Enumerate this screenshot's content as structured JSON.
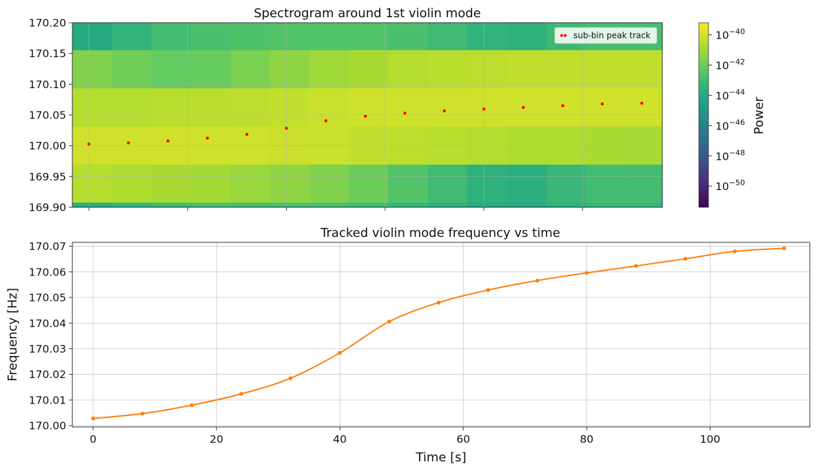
{
  "chart_data": [
    {
      "type": "heatmap",
      "title": "Spectrogram around 1st violin mode",
      "xlabel": "",
      "ylabel": "",
      "xlim": [
        -3.36,
        116.16
      ],
      "ylim": [
        169.9,
        170.2
      ],
      "yticks": [
        "169.90",
        "169.95",
        "170.00",
        "170.05",
        "170.10",
        "170.15",
        "170.20"
      ],
      "ytick_values": [
        169.9,
        169.95,
        170.0,
        170.05,
        170.1,
        170.15,
        170.2
      ],
      "xtick_values": [
        0,
        20,
        40,
        60,
        80,
        100
      ],
      "grid": true,
      "x_edges": [
        -3.36,
        4.64,
        12.64,
        20.64,
        28.64,
        36.64,
        44.64,
        52.64,
        60.64,
        68.64,
        76.64,
        84.64,
        92.64,
        100.64,
        108.64,
        116.16
      ],
      "y_edges": [
        169.902,
        169.9082,
        169.97,
        170.032,
        170.094,
        170.156,
        170.2
      ],
      "power_log10": [
        [
          -43.8,
          -43.4,
          -43.0,
          -42.8,
          -42.8,
          -42.8,
          -42.8,
          -43.0,
          -43.3,
          -43.6,
          -44.0,
          -44.0,
          -43.6,
          -43.3,
          -43.3
        ],
        [
          -40.6,
          -40.7,
          -40.8,
          -40.9,
          -41.1,
          -41.3,
          -41.6,
          -42.0,
          -42.6,
          -43.1,
          -43.6,
          -43.7,
          -43.3,
          -43.0,
          -43.0
        ],
        [
          -40.05,
          -40.05,
          -40.05,
          -40.1,
          -40.1,
          -40.15,
          -40.2,
          -40.3,
          -40.4,
          -40.5,
          -40.6,
          -40.7,
          -40.7,
          -40.8,
          -40.85
        ],
        [
          -40.6,
          -40.6,
          -40.5,
          -40.45,
          -40.4,
          -40.3,
          -40.2,
          -40.1,
          -40.1,
          -40.05,
          -40.05,
          -40.05,
          -40.05,
          -40.05,
          -40.1
        ],
        [
          -41.6,
          -41.9,
          -42.2,
          -42.1,
          -41.7,
          -41.3,
          -41.0,
          -40.8,
          -40.6,
          -40.5,
          -40.4,
          -40.35,
          -40.35,
          -40.35,
          -40.35
        ],
        [
          -44.0,
          -43.5,
          -43.0,
          -42.8,
          -42.7,
          -42.6,
          -42.6,
          -42.6,
          -42.8,
          -43.1,
          -43.5,
          -43.6,
          -43.2,
          -42.9,
          -42.9
        ]
      ],
      "legend": {
        "label": "sub-bin peak track",
        "placement": "top-right"
      },
      "track_color": "#ff0000",
      "colorbar": {
        "label": "Power",
        "range_log10": [
          -51.4,
          -39.2
        ],
        "ticks_log10": [
          -40,
          -42,
          -44,
          -46,
          -48,
          -50
        ],
        "tick_base": "10",
        "tick_exponents": [
          "−40",
          "−42",
          "−44",
          "−46",
          "−48",
          "−50"
        ]
      }
    },
    {
      "type": "line",
      "title": "Tracked violin mode frequency vs time",
      "xlabel": "Time [s]",
      "ylabel": "Frequency [Hz]",
      "xlim": [
        -3.36,
        116.16
      ],
      "ylim": [
        169.9995,
        170.0715
      ],
      "xticks": [
        "0",
        "20",
        "40",
        "60",
        "80",
        "100"
      ],
      "xtick_values": [
        0,
        20,
        40,
        60,
        80,
        100
      ],
      "yticks": [
        "170.00",
        "170.01",
        "170.02",
        "170.03",
        "170.04",
        "170.05",
        "170.06",
        "170.07"
      ],
      "ytick_values": [
        170.0,
        170.01,
        170.02,
        170.03,
        170.04,
        170.05,
        170.06,
        170.07
      ],
      "grid": true,
      "line_color": "#ff7f0e",
      "series": [
        {
          "x": [
            0,
            8,
            16,
            24,
            32,
            40,
            48,
            56,
            64,
            72,
            80,
            88,
            96,
            104,
            112
          ],
          "y": [
            170.0028,
            170.0047,
            170.008,
            170.0124,
            170.0185,
            170.0284,
            170.0406,
            170.048,
            170.0529,
            170.0566,
            170.0596,
            170.0623,
            170.0651,
            170.068,
            170.0692
          ]
        }
      ]
    }
  ]
}
